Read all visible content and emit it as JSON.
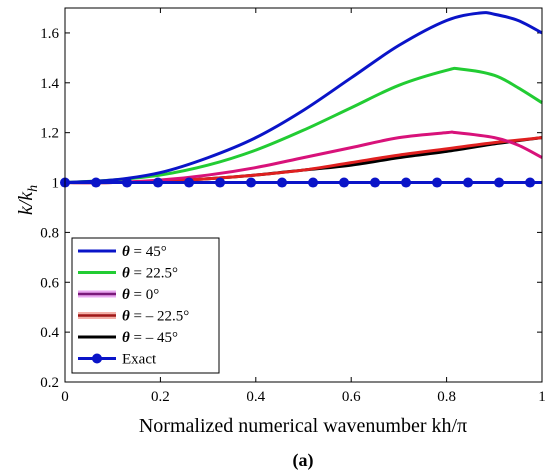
{
  "chart_data": {
    "type": "line",
    "xlabel": "Normalized numerical wavenumber kh/π",
    "ylabel": "k/k_h",
    "xlim": [
      0,
      1
    ],
    "ylim": [
      0.2,
      1.7
    ],
    "xticks": [
      0,
      0.2,
      0.4,
      0.6,
      0.8,
      1
    ],
    "xtick_labels": [
      "0",
      "0.2",
      "0.4",
      "0.6",
      "0.8",
      "1"
    ],
    "yticks": [
      0.2,
      0.4,
      0.6,
      0.8,
      1.0,
      1.2,
      1.4,
      1.6
    ],
    "ytick_labels": [
      "0.2",
      "0.4",
      "0.6",
      "0.8",
      "1",
      "1.2",
      "1.4",
      "1.6"
    ],
    "caption": "(a)",
    "legend_position": "bottom-left",
    "series": [
      {
        "name": "θ = 45°",
        "color": "#0a14c8",
        "x": [
          0,
          0.1,
          0.2,
          0.3,
          0.4,
          0.5,
          0.6,
          0.7,
          0.8,
          0.87,
          0.9,
          0.95,
          1.0
        ],
        "y": [
          1.0,
          1.01,
          1.04,
          1.1,
          1.18,
          1.29,
          1.42,
          1.55,
          1.65,
          1.68,
          1.675,
          1.65,
          1.6
        ]
      },
      {
        "name": "θ = 22.5°",
        "color": "#22cc33",
        "x": [
          0,
          0.1,
          0.2,
          0.3,
          0.4,
          0.5,
          0.6,
          0.7,
          0.8,
          0.83,
          0.9,
          0.95,
          1.0
        ],
        "y": [
          1.0,
          1.01,
          1.03,
          1.07,
          1.13,
          1.21,
          1.3,
          1.39,
          1.45,
          1.455,
          1.43,
          1.38,
          1.32
        ]
      },
      {
        "name": "θ = 0°",
        "color": "#d8127a",
        "x": [
          0,
          0.1,
          0.2,
          0.3,
          0.4,
          0.5,
          0.6,
          0.7,
          0.8,
          0.82,
          0.9,
          0.95,
          1.0
        ],
        "y": [
          1.0,
          1.0,
          1.01,
          1.03,
          1.06,
          1.1,
          1.14,
          1.18,
          1.2,
          1.2,
          1.18,
          1.15,
          1.1
        ]
      },
      {
        "name": "θ = – 22.5°",
        "color": "#e02020",
        "x": [
          0,
          0.1,
          0.2,
          0.3,
          0.4,
          0.5,
          0.6,
          0.7,
          0.8,
          0.9,
          1.0
        ],
        "y": [
          1.0,
          1.0,
          1.005,
          1.015,
          1.03,
          1.05,
          1.08,
          1.11,
          1.135,
          1.16,
          1.18
        ]
      },
      {
        "name": "θ = – 45°",
        "color": "#000000",
        "x": [
          0,
          0.1,
          0.2,
          0.3,
          0.4,
          0.5,
          0.6,
          0.7,
          0.8,
          0.9,
          1.0
        ],
        "y": [
          1.0,
          1.0,
          1.005,
          1.015,
          1.03,
          1.05,
          1.07,
          1.1,
          1.125,
          1.155,
          1.18
        ]
      },
      {
        "name": "Exact",
        "color": "#0a14c8",
        "marker": "circle",
        "x": [
          0,
          0.065,
          0.13,
          0.195,
          0.26,
          0.325,
          0.39,
          0.455,
          0.52,
          0.585,
          0.65,
          0.715,
          0.78,
          0.845,
          0.91,
          0.975
        ],
        "y": [
          1,
          1,
          1,
          1,
          1,
          1,
          1,
          1,
          1,
          1,
          1,
          1,
          1,
          1,
          1,
          1
        ]
      }
    ]
  },
  "legend": {
    "entries": [
      "θ = 45°",
      "θ = 22.5°",
      "θ = 0°",
      "θ = – 22.5°",
      "θ = – 45°",
      "Exact"
    ]
  },
  "colors": {
    "theta_0_glow": "#e9a8f0",
    "theta_0_line": "#7a1a7a",
    "theta_m22_glow": "#f3b0a8",
    "theta_m22_line": "#a01818"
  }
}
